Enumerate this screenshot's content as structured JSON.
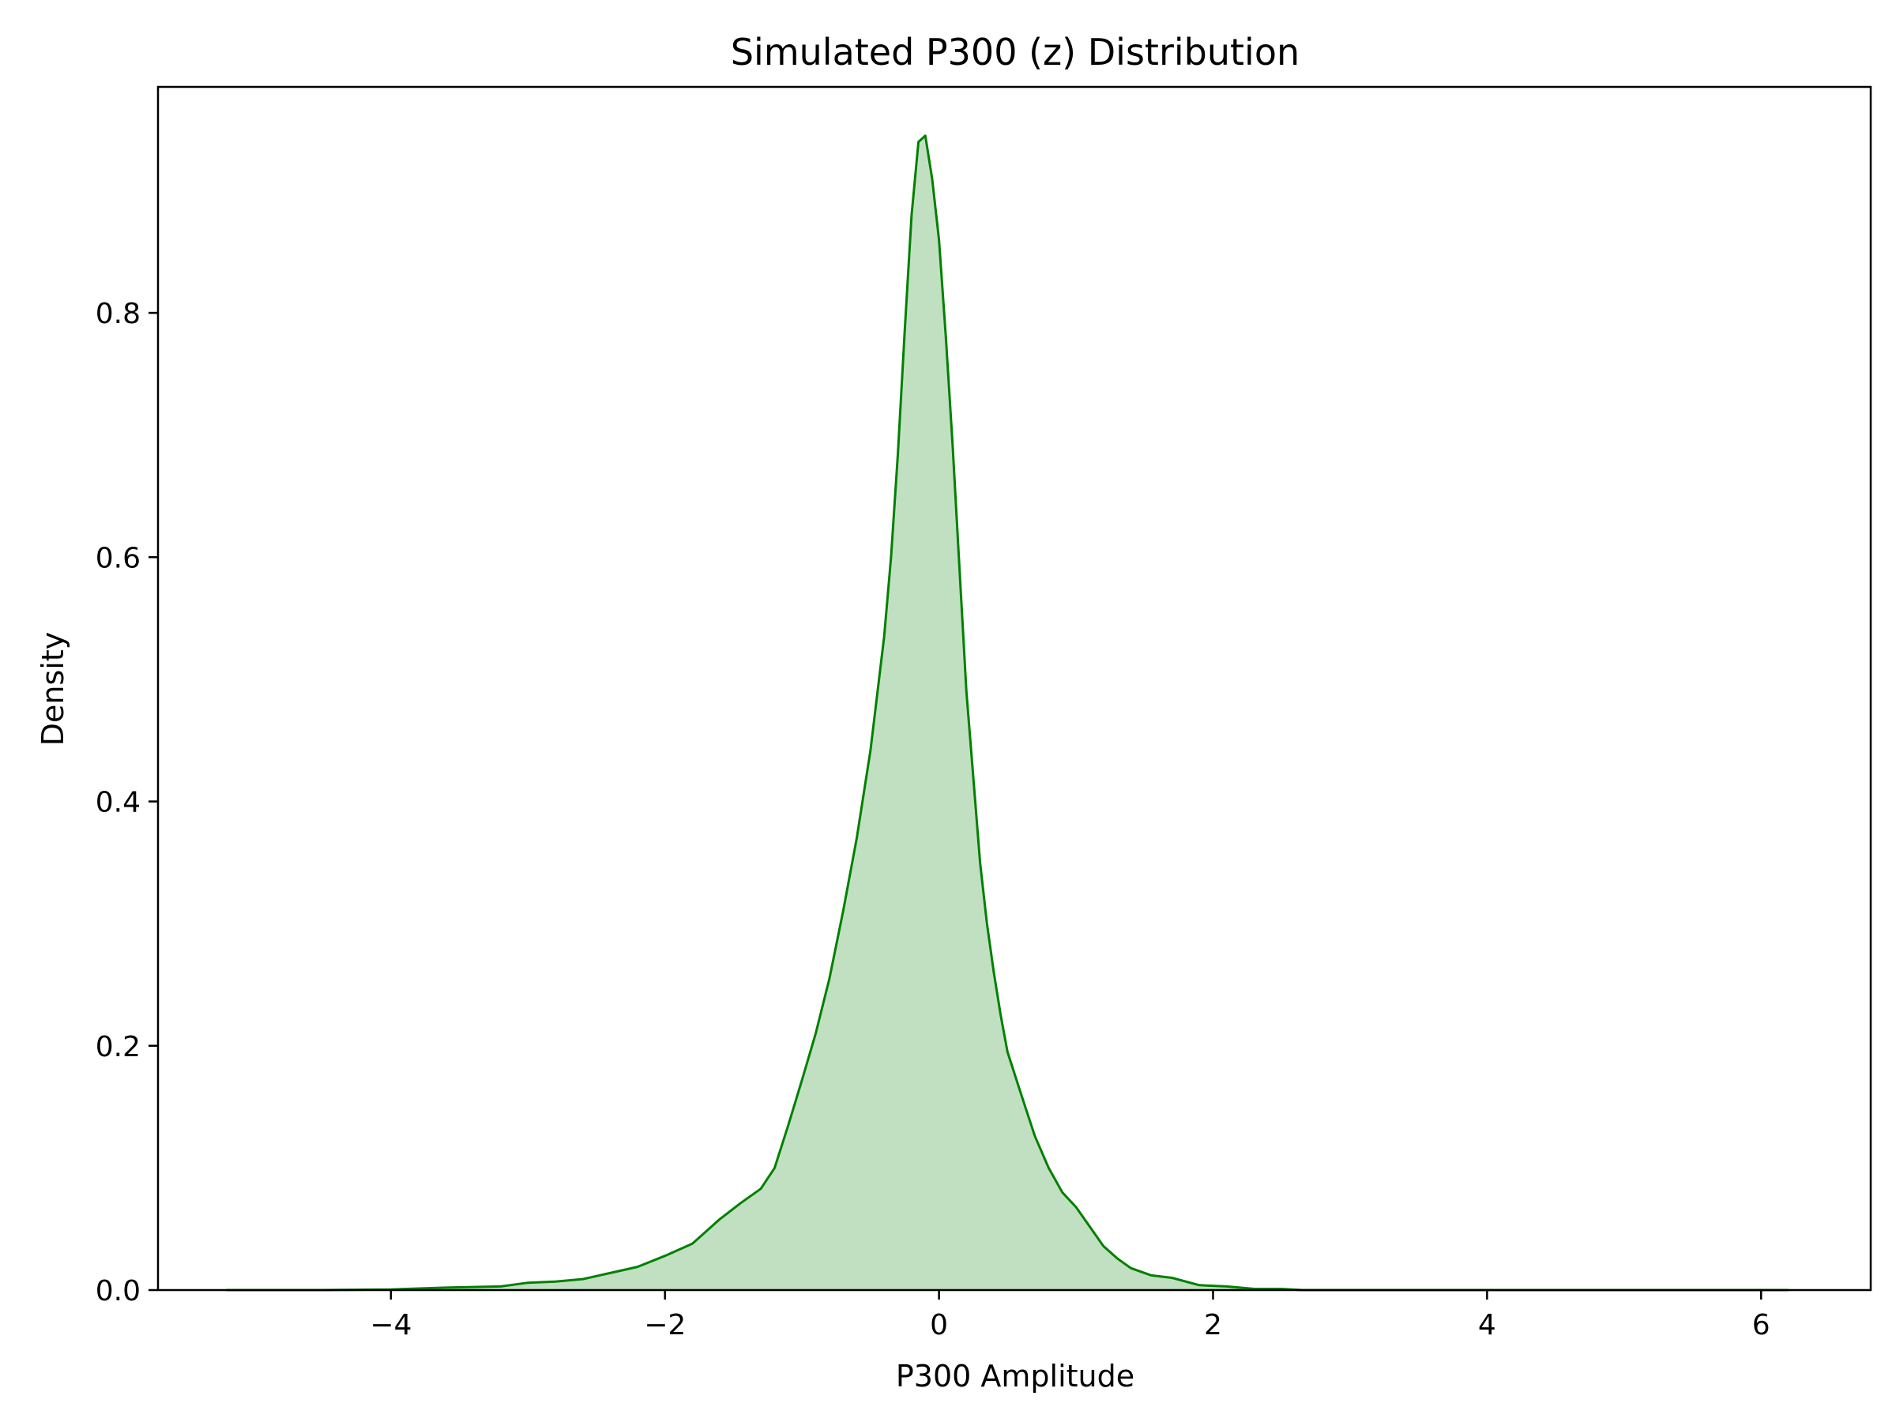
{
  "chart_data": {
    "type": "area",
    "title": "Simulated P300 (z) Distribution",
    "xlabel": "P300 Amplitude",
    "ylabel": "Density",
    "xlim": [
      -5.7,
      6.8
    ],
    "ylim": [
      0.0,
      0.985
    ],
    "xticks": [
      -4,
      -2,
      0,
      2,
      4,
      6
    ],
    "xtick_labels": [
      "−4",
      "−2",
      "0",
      "2",
      "4",
      "6"
    ],
    "yticks": [
      0.0,
      0.2,
      0.4,
      0.6,
      0.8
    ],
    "ytick_labels": [
      "0.0",
      "0.2",
      "0.4",
      "0.6",
      "0.8"
    ],
    "grid": false,
    "series": [
      {
        "color": "#008000",
        "fill_color": "#c1e0c1",
        "x": [
          -5.2,
          -4.5,
          -4.0,
          -3.6,
          -3.2,
          -3.0,
          -2.8,
          -2.6,
          -2.4,
          -2.2,
          -2.0,
          -1.8,
          -1.6,
          -1.45,
          -1.3,
          -1.2,
          -1.1,
          -1.0,
          -0.9,
          -0.8,
          -0.7,
          -0.6,
          -0.5,
          -0.4,
          -0.35,
          -0.3,
          -0.25,
          -0.2,
          -0.15,
          -0.1,
          -0.05,
          0.0,
          0.05,
          0.1,
          0.15,
          0.2,
          0.25,
          0.3,
          0.35,
          0.4,
          0.45,
          0.5,
          0.6,
          0.7,
          0.8,
          0.9,
          1.0,
          1.1,
          1.2,
          1.3,
          1.4,
          1.55,
          1.7,
          1.9,
          2.1,
          2.3,
          2.5,
          2.65,
          2.8,
          3.0,
          3.2,
          3.5,
          3.8,
          4.2,
          4.8,
          5.5,
          6.2
        ],
        "y": [
          0.0,
          0.0,
          0.0005,
          0.002,
          0.003,
          0.006,
          0.007,
          0.009,
          0.014,
          0.019,
          0.028,
          0.038,
          0.058,
          0.071,
          0.083,
          0.1,
          0.135,
          0.172,
          0.21,
          0.255,
          0.31,
          0.37,
          0.442,
          0.535,
          0.6,
          0.685,
          0.785,
          0.88,
          0.94,
          0.945,
          0.91,
          0.86,
          0.78,
          0.69,
          0.59,
          0.49,
          0.42,
          0.35,
          0.3,
          0.26,
          0.225,
          0.195,
          0.16,
          0.126,
          0.1,
          0.08,
          0.068,
          0.052,
          0.036,
          0.026,
          0.018,
          0.012,
          0.01,
          0.004,
          0.003,
          0.001,
          0.001,
          0.0,
          0.0,
          0.0,
          0.0,
          0.0,
          0.0,
          0.0,
          0.0,
          0.0,
          0.0
        ]
      }
    ]
  }
}
